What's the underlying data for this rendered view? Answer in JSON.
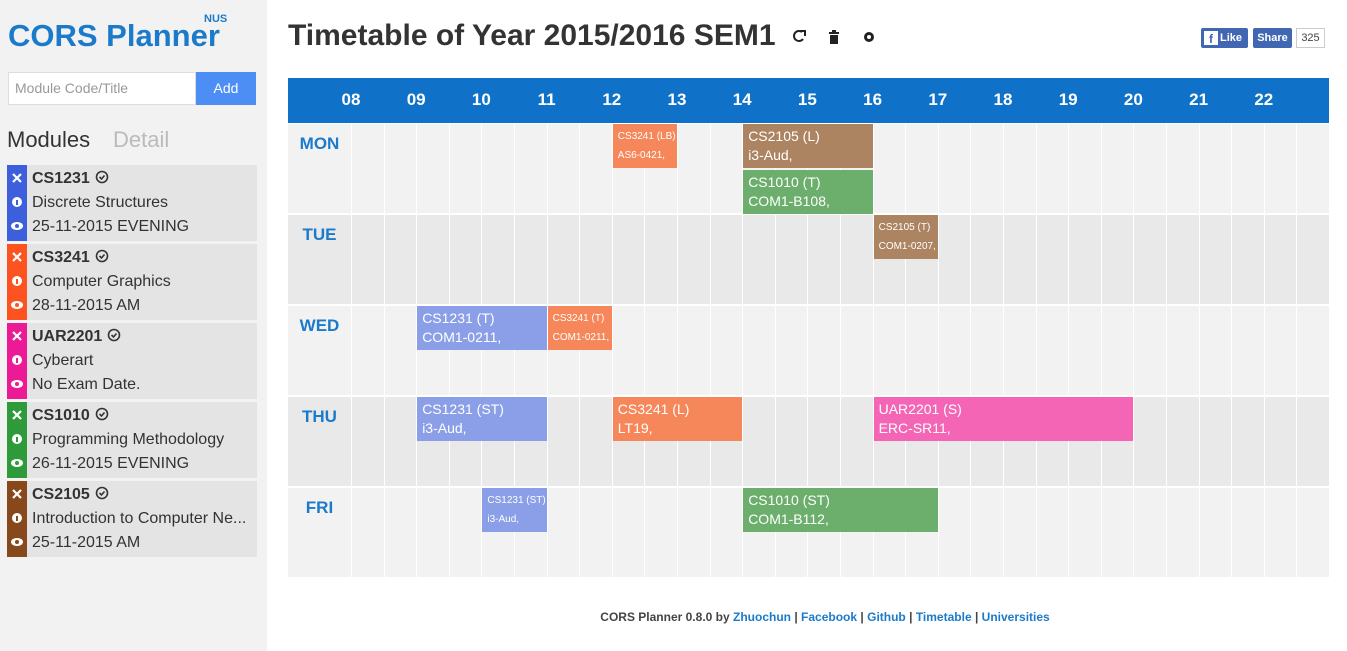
{
  "sidebar": {
    "logo": "CORS Planner",
    "logo_tag": "NUS",
    "search_placeholder": "Module Code/Title",
    "add_button": "Add",
    "tabs": [
      "Modules",
      "Detail"
    ],
    "modules": [
      {
        "code": "CS1231",
        "title": "Discrete Structures",
        "exam": "25-11-2015 EVENING",
        "color": "#3d5fdc"
      },
      {
        "code": "CS3241",
        "title": "Computer Graphics",
        "exam": "28-11-2015 AM",
        "color": "#fd5320"
      },
      {
        "code": "UAR2201",
        "title": "Cyberart",
        "exam": "No Exam Date.",
        "color": "#ec1a94"
      },
      {
        "code": "CS1010",
        "title": "Programming Methodology",
        "exam": "26-11-2015 EVENING",
        "color": "#2e9a3a"
      },
      {
        "code": "CS2105",
        "title": "Introduction to Computer Ne...",
        "exam": "25-11-2015 AM",
        "color": "#87481b"
      }
    ]
  },
  "header": {
    "title": "Timetable of Year 2015/2016 SEM1",
    "like": "Like",
    "share": "Share",
    "share_count": "325"
  },
  "timetable": {
    "hours": [
      "08",
      "09",
      "10",
      "11",
      "12",
      "13",
      "14",
      "15",
      "16",
      "17",
      "18",
      "19",
      "20",
      "21",
      "22"
    ],
    "days": [
      "MON",
      "TUE",
      "WED",
      "THU",
      "FRI"
    ],
    "lessons": [
      {
        "day": 0,
        "start": 12,
        "end": 13,
        "name": "CS3241 (LB)",
        "venue": "AS6-0421,",
        "color": "#f5875a"
      },
      {
        "day": 0,
        "start": 14,
        "end": 16,
        "name": "CS2105 (L)",
        "venue": "i3-Aud,",
        "color": "#ad8462"
      },
      {
        "day": 0,
        "start": 14,
        "end": 16,
        "name": "CS1010 (T)",
        "venue": "COM1-B108,",
        "color": "#6cae6c"
      },
      {
        "day": 1,
        "start": 16,
        "end": 17,
        "name": "CS2105 (T)",
        "venue": "COM1-0207,",
        "color": "#ad8462"
      },
      {
        "day": 2,
        "start": 9,
        "end": 11,
        "name": "CS1231 (T)",
        "venue": "COM1-0211,",
        "color": "#8a9fe7"
      },
      {
        "day": 2,
        "start": 11,
        "end": 12,
        "name": "CS3241 (T)",
        "venue": "COM1-0211,",
        "color": "#f5875a"
      },
      {
        "day": 3,
        "start": 9,
        "end": 11,
        "name": "CS1231 (ST)",
        "venue": "i3-Aud,",
        "color": "#8a9fe7"
      },
      {
        "day": 3,
        "start": 12,
        "end": 14,
        "name": "CS3241 (L)",
        "venue": "LT19,",
        "color": "#f5875a"
      },
      {
        "day": 3,
        "start": 16,
        "end": 20,
        "name": "UAR2201 (S)",
        "venue": "ERC-SR11,",
        "color": "#f466b5"
      },
      {
        "day": 4,
        "start": 10,
        "end": 11,
        "name": "CS1231 (ST)",
        "venue": "i3-Aud,",
        "color": "#8a9fe7"
      },
      {
        "day": 4,
        "start": 14,
        "end": 17,
        "name": "CS1010 (ST)",
        "venue": "COM1-B112,",
        "color": "#6cae6c"
      }
    ]
  },
  "footer": {
    "text": "CORS Planner 0.8.0 by",
    "separator": "|",
    "links": [
      "Zhuochun",
      "Facebook",
      "Github",
      "Timetable",
      "Universities"
    ]
  }
}
